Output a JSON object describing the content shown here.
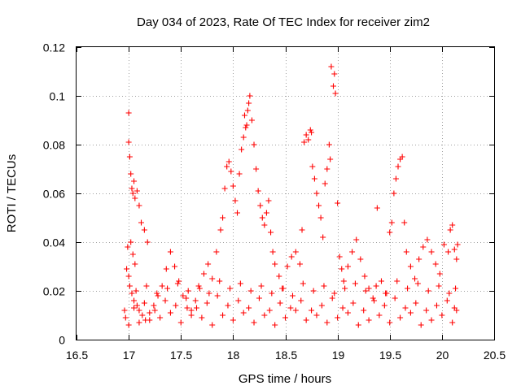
{
  "chart_data": {
    "type": "scatter",
    "title": "Day 034 of 2023, Rate Of TEC Index for receiver zim2",
    "xlabel": "GPS time / hours",
    "ylabel": "ROTI / TECUs",
    "xlim": [
      16.5,
      20.5
    ],
    "ylim": [
      0,
      0.12
    ],
    "xticks": [
      "16.5",
      "17",
      "17.5",
      "18",
      "18.5",
      "19",
      "19.5",
      "20",
      "20.5"
    ],
    "yticks": [
      "0",
      "0.02",
      "0.04",
      "0.06",
      "0.08",
      "0.1",
      "0.12"
    ],
    "grid": true,
    "marker": "+",
    "color": "#ff0000",
    "series": [
      {
        "points": [
          [
            16.96,
            0.012
          ],
          [
            16.97,
            0.009
          ],
          [
            16.98,
            0.029
          ],
          [
            16.99,
            0.038
          ],
          [
            17.0,
            0.093
          ],
          [
            17.0,
            0.081
          ],
          [
            17.01,
            0.075
          ],
          [
            17.02,
            0.068
          ],
          [
            17.03,
            0.062
          ],
          [
            17.04,
            0.06
          ],
          [
            17.05,
            0.065
          ],
          [
            17.06,
            0.058
          ],
          [
            17.08,
            0.061
          ],
          [
            17.1,
            0.055
          ],
          [
            17.12,
            0.048
          ],
          [
            17.15,
            0.045
          ],
          [
            17.18,
            0.04
          ],
          [
            17.02,
            0.04
          ],
          [
            17.04,
            0.035
          ],
          [
            17.06,
            0.031
          ],
          [
            17.0,
            0.026
          ],
          [
            17.01,
            0.022
          ],
          [
            17.03,
            0.019
          ],
          [
            17.05,
            0.016
          ],
          [
            17.08,
            0.014
          ],
          [
            17.1,
            0.012
          ],
          [
            17.13,
            0.01
          ],
          [
            17.16,
            0.008
          ],
          [
            17.2,
            0.011
          ],
          [
            17.24,
            0.014
          ],
          [
            17.28,
            0.018
          ],
          [
            17.32,
            0.022
          ],
          [
            17.36,
            0.029
          ],
          [
            17.4,
            0.036
          ],
          [
            17.44,
            0.03
          ],
          [
            17.48,
            0.024
          ],
          [
            17.52,
            0.018
          ],
          [
            17.56,
            0.013
          ],
          [
            17.6,
            0.01
          ],
          [
            17.64,
            0.016
          ],
          [
            17.68,
            0.021
          ],
          [
            17.72,
            0.027
          ],
          [
            17.76,
            0.031
          ],
          [
            17.8,
            0.025
          ],
          [
            17.84,
            0.036
          ],
          [
            17.88,
            0.045
          ],
          [
            17.9,
            0.05
          ],
          [
            17.92,
            0.062
          ],
          [
            17.94,
            0.071
          ],
          [
            17.96,
            0.073
          ],
          [
            17.98,
            0.069
          ],
          [
            18.0,
            0.063
          ],
          [
            18.02,
            0.057
          ],
          [
            18.04,
            0.052
          ],
          [
            18.06,
            0.068
          ],
          [
            18.08,
            0.078
          ],
          [
            18.1,
            0.083
          ],
          [
            18.11,
            0.092
          ],
          [
            18.12,
            0.087
          ],
          [
            18.13,
            0.088
          ],
          [
            18.14,
            0.094
          ],
          [
            18.15,
            0.097
          ],
          [
            18.16,
            0.1
          ],
          [
            18.18,
            0.09
          ],
          [
            18.2,
            0.08
          ],
          [
            18.22,
            0.07
          ],
          [
            18.24,
            0.061
          ],
          [
            18.26,
            0.055
          ],
          [
            18.28,
            0.05
          ],
          [
            18.3,
            0.047
          ],
          [
            18.32,
            0.052
          ],
          [
            18.34,
            0.057
          ],
          [
            18.36,
            0.044
          ],
          [
            18.38,
            0.036
          ],
          [
            18.4,
            0.031
          ],
          [
            18.44,
            0.026
          ],
          [
            18.48,
            0.021
          ],
          [
            18.52,
            0.03
          ],
          [
            18.56,
            0.034
          ],
          [
            18.6,
            0.036
          ],
          [
            18.64,
            0.031
          ],
          [
            18.66,
            0.045
          ],
          [
            18.68,
            0.081
          ],
          [
            18.7,
            0.084
          ],
          [
            18.72,
            0.082
          ],
          [
            18.74,
            0.086
          ],
          [
            18.75,
            0.085
          ],
          [
            18.76,
            0.071
          ],
          [
            18.78,
            0.066
          ],
          [
            18.8,
            0.06
          ],
          [
            18.82,
            0.055
          ],
          [
            18.84,
            0.05
          ],
          [
            18.86,
            0.042
          ],
          [
            18.88,
            0.064
          ],
          [
            18.9,
            0.07
          ],
          [
            18.92,
            0.08
          ],
          [
            18.93,
            0.074
          ],
          [
            18.94,
            0.112
          ],
          [
            18.96,
            0.104
          ],
          [
            18.97,
            0.109
          ],
          [
            18.98,
            0.101
          ],
          [
            19.0,
            0.056
          ],
          [
            19.02,
            0.034
          ],
          [
            19.04,
            0.029
          ],
          [
            19.06,
            0.024
          ],
          [
            19.1,
            0.03
          ],
          [
            19.14,
            0.036
          ],
          [
            19.18,
            0.041
          ],
          [
            19.22,
            0.033
          ],
          [
            19.26,
            0.026
          ],
          [
            19.3,
            0.021
          ],
          [
            19.34,
            0.017
          ],
          [
            19.38,
            0.054
          ],
          [
            19.42,
            0.024
          ],
          [
            19.46,
            0.019
          ],
          [
            19.5,
            0.044
          ],
          [
            19.52,
            0.048
          ],
          [
            19.54,
            0.06
          ],
          [
            19.56,
            0.066
          ],
          [
            19.58,
            0.071
          ],
          [
            19.6,
            0.074
          ],
          [
            19.62,
            0.075
          ],
          [
            19.64,
            0.048
          ],
          [
            19.66,
            0.036
          ],
          [
            19.7,
            0.03
          ],
          [
            19.74,
            0.025
          ],
          [
            19.78,
            0.033
          ],
          [
            19.82,
            0.038
          ],
          [
            19.86,
            0.041
          ],
          [
            19.9,
            0.036
          ],
          [
            19.94,
            0.031
          ],
          [
            19.98,
            0.027
          ],
          [
            20.02,
            0.039
          ],
          [
            20.06,
            0.036
          ],
          [
            20.08,
            0.045
          ],
          [
            20.1,
            0.047
          ],
          [
            20.12,
            0.037
          ],
          [
            20.14,
            0.033
          ],
          [
            20.15,
            0.039
          ],
          [
            17.0,
            0.006
          ],
          [
            17.1,
            0.007
          ],
          [
            17.2,
            0.008
          ],
          [
            17.3,
            0.009
          ],
          [
            17.4,
            0.011
          ],
          [
            17.5,
            0.007
          ],
          [
            17.6,
            0.012
          ],
          [
            17.7,
            0.009
          ],
          [
            17.8,
            0.006
          ],
          [
            17.9,
            0.01
          ],
          [
            18.0,
            0.008
          ],
          [
            18.1,
            0.011
          ],
          [
            18.2,
            0.007
          ],
          [
            18.3,
            0.01
          ],
          [
            18.4,
            0.006
          ],
          [
            18.5,
            0.009
          ],
          [
            18.6,
            0.012
          ],
          [
            18.7,
            0.008
          ],
          [
            18.8,
            0.01
          ],
          [
            18.9,
            0.007
          ],
          [
            19.0,
            0.009
          ],
          [
            19.1,
            0.011
          ],
          [
            19.2,
            0.006
          ],
          [
            19.3,
            0.008
          ],
          [
            19.4,
            0.01
          ],
          [
            19.5,
            0.007
          ],
          [
            19.6,
            0.009
          ],
          [
            19.7,
            0.011
          ],
          [
            19.8,
            0.006
          ],
          [
            19.9,
            0.008
          ],
          [
            20.0,
            0.01
          ],
          [
            20.1,
            0.007
          ],
          [
            20.14,
            0.012
          ],
          [
            17.05,
            0.013
          ],
          [
            17.15,
            0.015
          ],
          [
            17.25,
            0.012
          ],
          [
            17.35,
            0.016
          ],
          [
            17.45,
            0.014
          ],
          [
            17.55,
            0.017
          ],
          [
            17.65,
            0.013
          ],
          [
            17.75,
            0.015
          ],
          [
            17.85,
            0.018
          ],
          [
            17.95,
            0.014
          ],
          [
            18.05,
            0.016
          ],
          [
            18.15,
            0.013
          ],
          [
            18.25,
            0.017
          ],
          [
            18.35,
            0.012
          ],
          [
            18.45,
            0.015
          ],
          [
            18.55,
            0.013
          ],
          [
            18.65,
            0.016
          ],
          [
            18.75,
            0.012
          ],
          [
            18.85,
            0.014
          ],
          [
            18.95,
            0.017
          ],
          [
            19.05,
            0.013
          ],
          [
            19.15,
            0.015
          ],
          [
            19.25,
            0.012
          ],
          [
            19.35,
            0.016
          ],
          [
            19.45,
            0.014
          ],
          [
            19.55,
            0.017
          ],
          [
            19.65,
            0.013
          ],
          [
            19.75,
            0.015
          ],
          [
            19.85,
            0.012
          ],
          [
            19.95,
            0.014
          ],
          [
            20.05,
            0.016
          ],
          [
            20.12,
            0.013
          ],
          [
            17.07,
            0.02
          ],
          [
            17.17,
            0.022
          ],
          [
            17.27,
            0.019
          ],
          [
            17.37,
            0.021
          ],
          [
            17.47,
            0.023
          ],
          [
            17.57,
            0.02
          ],
          [
            17.67,
            0.022
          ],
          [
            17.77,
            0.019
          ],
          [
            17.87,
            0.024
          ],
          [
            17.97,
            0.021
          ],
          [
            18.07,
            0.023
          ],
          [
            18.17,
            0.02
          ],
          [
            18.27,
            0.022
          ],
          [
            18.37,
            0.019
          ],
          [
            18.47,
            0.021
          ],
          [
            18.57,
            0.018
          ],
          [
            18.67,
            0.023
          ],
          [
            18.77,
            0.02
          ],
          [
            18.87,
            0.022
          ],
          [
            18.97,
            0.019
          ],
          [
            19.07,
            0.021
          ],
          [
            19.17,
            0.023
          ],
          [
            19.27,
            0.02
          ],
          [
            19.37,
            0.022
          ],
          [
            19.47,
            0.019
          ],
          [
            19.57,
            0.024
          ],
          [
            19.67,
            0.021
          ],
          [
            19.77,
            0.023
          ],
          [
            19.87,
            0.02
          ],
          [
            19.97,
            0.022
          ],
          [
            20.07,
            0.019
          ],
          [
            20.13,
            0.021
          ]
        ]
      }
    ]
  }
}
